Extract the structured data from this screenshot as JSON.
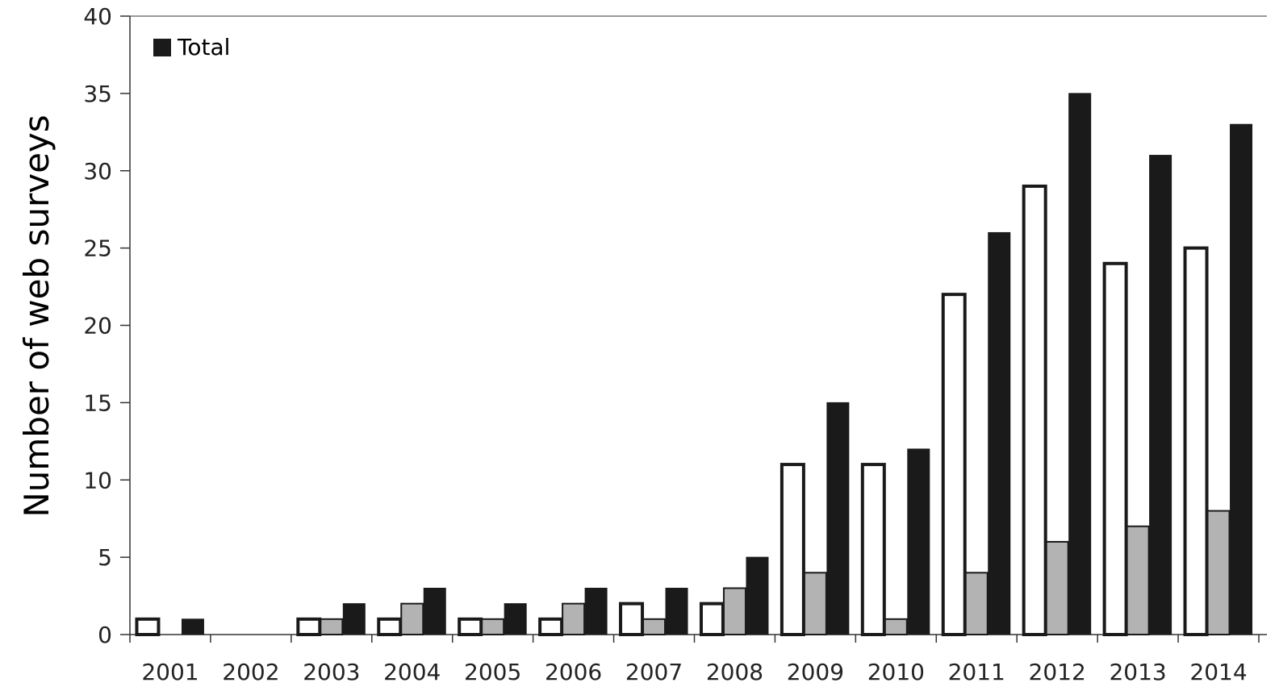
{
  "chart_data": {
    "type": "bar",
    "title": "",
    "xlabel": "",
    "ylabel": "Number of web surveys",
    "ylim": [
      0,
      40
    ],
    "yticks": [
      0,
      5,
      10,
      15,
      20,
      25,
      30,
      35,
      40
    ],
    "grid": false,
    "legend_position": "top-left",
    "categories": [
      "2001",
      "2002",
      "2003",
      "2004",
      "2005",
      "2006",
      "2007",
      "2008",
      "2009",
      "2010",
      "2011",
      "2012",
      "2013",
      "2014"
    ],
    "series": [
      {
        "values": [
          1,
          0,
          1,
          1,
          1,
          1,
          2,
          2,
          11,
          11,
          22,
          29,
          24,
          25
        ],
        "fill": "#ffffff",
        "stroke": "#1a1a1a"
      },
      {
        "values": [
          0,
          0,
          1,
          2,
          1,
          2,
          1,
          3,
          4,
          1,
          4,
          6,
          7,
          8
        ],
        "fill": "#b3b3b3",
        "stroke": "#1a1a1a"
      },
      {
        "name": "Total",
        "values": [
          1,
          0,
          2,
          3,
          2,
          3,
          3,
          5,
          15,
          12,
          26,
          35,
          31,
          33
        ],
        "fill": "#1a1a1a",
        "stroke": "#1a1a1a"
      }
    ],
    "legend": [
      {
        "label": "Total",
        "color": "#1a1a1a"
      }
    ]
  }
}
